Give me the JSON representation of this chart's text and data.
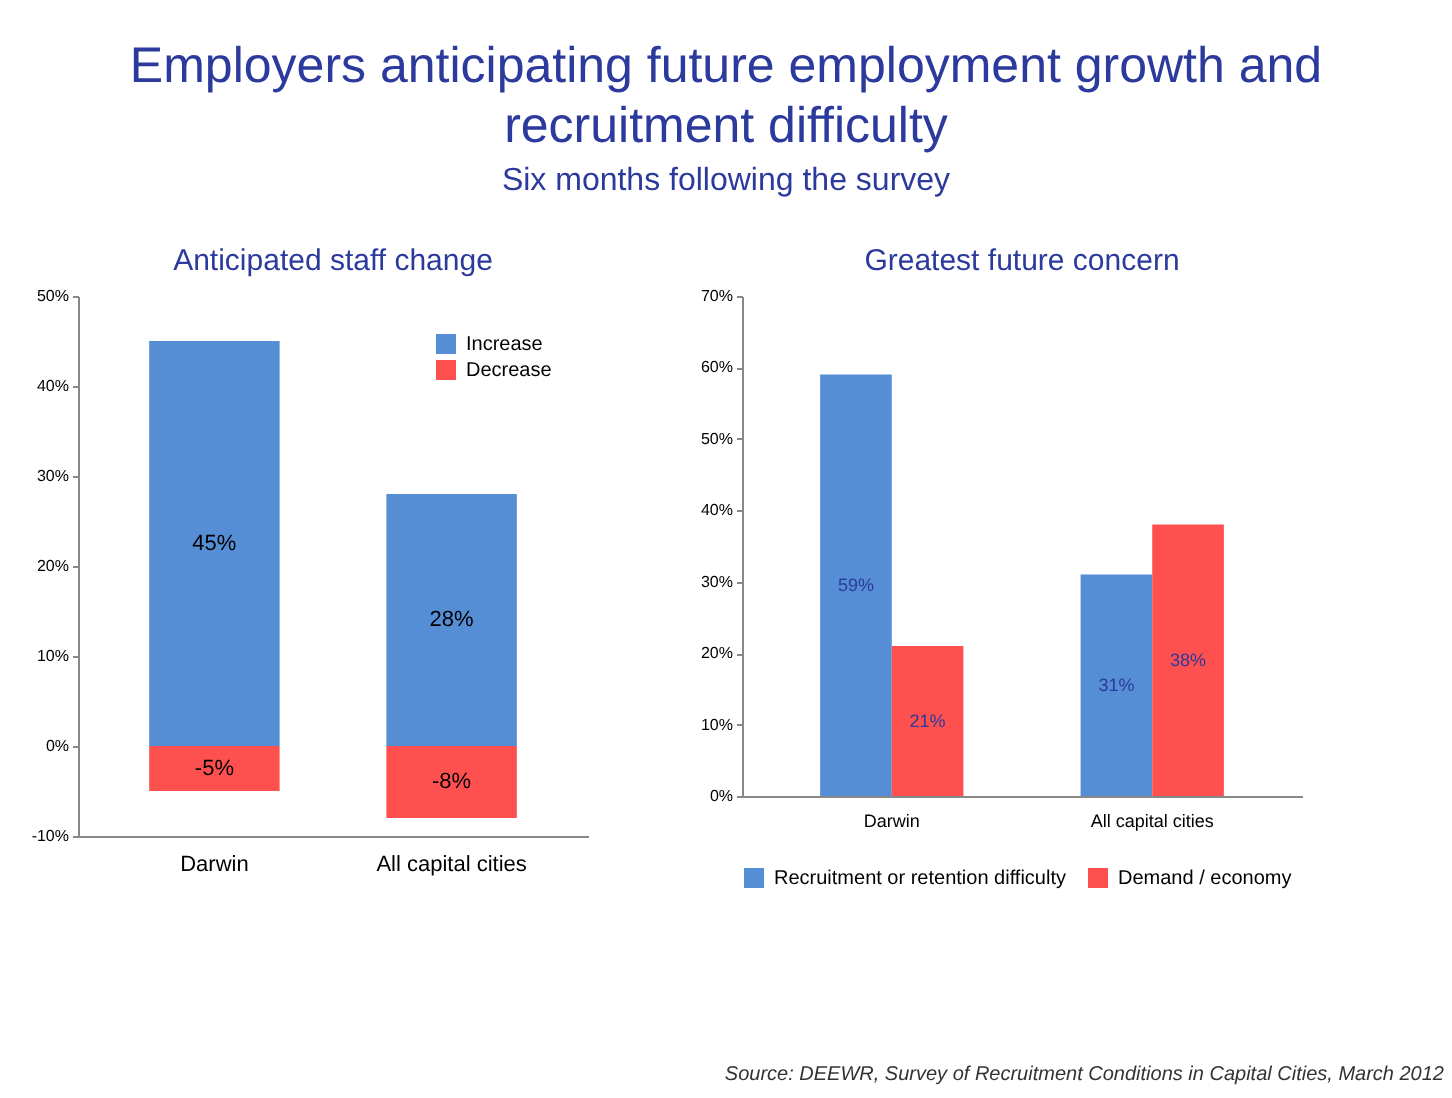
{
  "chart_data": [
    {
      "type": "other",
      "title": "Employers anticipating future employment growth and recruitment difficulty",
      "subtitle": "Six months following the survey"
    },
    {
      "type": "bar",
      "title": "Anticipated staff change",
      "categories": [
        "Darwin",
        "All capital cities"
      ],
      "stacked": true,
      "series": [
        {
          "name": "Increase",
          "color": "#558ed5",
          "values": [
            45,
            28
          ],
          "value_labels": [
            "45%",
            "28%"
          ]
        },
        {
          "name": "Decrease",
          "color": "#ff5050",
          "values": [
            -5,
            -8
          ],
          "value_labels": [
            "-5%",
            "-8%"
          ]
        }
      ],
      "ylim": [
        -10,
        50
      ],
      "yticks": [
        {
          "value": -10,
          "label": "-10%"
        },
        {
          "value": 0,
          "label": "0%"
        },
        {
          "value": 10,
          "label": "10%"
        },
        {
          "value": 20,
          "label": "20%"
        },
        {
          "value": 30,
          "label": "30%"
        },
        {
          "value": 40,
          "label": "40%"
        },
        {
          "value": 50,
          "label": "50%"
        }
      ],
      "legend": "top right",
      "grid": false
    },
    {
      "type": "bar",
      "title": "Greatest future concern",
      "categories": [
        "Darwin",
        "All capital cities"
      ],
      "series": [
        {
          "name": "Recruitment or retention difficulty",
          "color": "#558ed5",
          "values": [
            59,
            31
          ],
          "value_labels": [
            "59%",
            "31%"
          ]
        },
        {
          "name": "Demand / economy",
          "color": "#ff5050",
          "values": [
            21,
            38
          ],
          "value_labels": [
            "21%",
            "38%"
          ]
        }
      ],
      "ylim": [
        0,
        70
      ],
      "yticks": [
        {
          "value": 0,
          "label": "0%"
        },
        {
          "value": 10,
          "label": "10%"
        },
        {
          "value": 20,
          "label": "20%"
        },
        {
          "value": 30,
          "label": "30%"
        },
        {
          "value": 40,
          "label": "40%"
        },
        {
          "value": 50,
          "label": "50%"
        },
        {
          "value": 60,
          "label": "60%"
        },
        {
          "value": 70,
          "label": "70%"
        }
      ],
      "legend": "bottom",
      "grid": false,
      "annotations": [
        "Source:  DEEWR, Survey of Recruitment Conditions in Capital Cities, March 2012"
      ]
    }
  ]
}
